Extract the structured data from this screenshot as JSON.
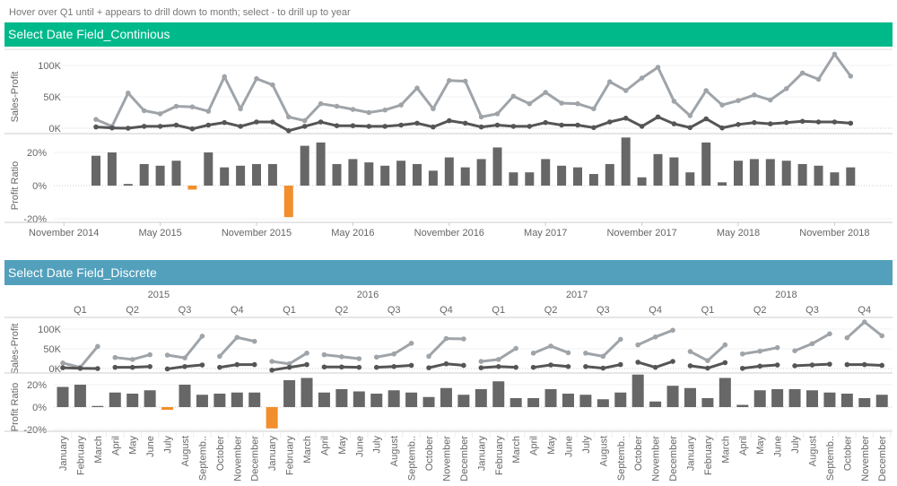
{
  "hint": "Hover over Q1 until + appears to drill down to month; select - to drill up to year",
  "continuous_title": "Select Date Field_Continious",
  "discrete_title": "Select Date Field_Discrete",
  "colors": {
    "continuous_header": "#00b98b",
    "discrete_header": "#52a0bc",
    "sales": "#9fa4a9",
    "profit": "#555555",
    "ratio_positive": "#676767",
    "ratio_negative": "#f28e2b"
  },
  "chart_data": [
    {
      "type": "line",
      "title": "",
      "x_type": "date-continuous",
      "x_ticks": [
        "November 2014",
        "May 2015",
        "November 2015",
        "May 2016",
        "November 2016",
        "May 2017",
        "November 2017",
        "May 2018",
        "November 2018"
      ],
      "panes": [
        {
          "ylabel": "Sales-Profit",
          "y_ticks": [
            "100K",
            "50K",
            "0K"
          ],
          "ylim": [
            0,
            120000
          ]
        },
        {
          "ylabel": "Profit Ratio",
          "type": "bar",
          "y_ticks": [
            "20%",
            "0%",
            "-20%"
          ],
          "ylim": [
            -22,
            30
          ]
        }
      ]
    },
    {
      "type": "line",
      "title": "",
      "x_type": "date-discrete",
      "years": [
        "2015",
        "2016",
        "2017",
        "2018"
      ],
      "quarters": [
        "Q1",
        "Q2",
        "Q3",
        "Q4"
      ],
      "months": [
        "January",
        "February",
        "March",
        "April",
        "May",
        "June",
        "July",
        "August",
        "Septemb..",
        "October",
        "November",
        "December"
      ],
      "panes": [
        {
          "ylabel": "Sales-Profit",
          "y_ticks": [
            "100K",
            "50K",
            "0K"
          ]
        },
        {
          "ylabel": "Profit Ratio",
          "type": "bar",
          "y_ticks": [
            "20%",
            "0%",
            "-20%"
          ]
        }
      ]
    }
  ],
  "series": {
    "months_range": [
      "2015-01",
      "2018-12"
    ],
    "sales_k": [
      14,
      3,
      56,
      28,
      23,
      35,
      34,
      27,
      82,
      31,
      79,
      69,
      18,
      12,
      39,
      35,
      30,
      25,
      29,
      37,
      64,
      31,
      76,
      75,
      18,
      23,
      51,
      39,
      57,
      40,
      39,
      31,
      74,
      60,
      80,
      97,
      43,
      20,
      60,
      37,
      44,
      53,
      45,
      63,
      88,
      78,
      118,
      83
    ],
    "profit_k": [
      2,
      0.5,
      0,
      3,
      3,
      5,
      -1,
      5,
      9,
      3,
      10,
      10,
      -4,
      3,
      10,
      4,
      4,
      3,
      3,
      5,
      8,
      2,
      12,
      8,
      2,
      5,
      3,
      3,
      9,
      5,
      5,
      1,
      10,
      16,
      3,
      18,
      7,
      1,
      15,
      0.5,
      6,
      9,
      7,
      9,
      11,
      10,
      10,
      8
    ],
    "profit_ratio_pct": [
      18,
      20,
      1,
      13,
      12,
      15,
      -2.4,
      20,
      11,
      12,
      13,
      13,
      -19,
      24,
      26,
      13,
      16,
      14,
      12,
      15,
      13,
      9,
      17,
      11,
      16,
      23,
      8,
      8,
      16,
      12,
      11,
      7,
      13,
      29,
      5,
      19,
      17,
      8,
      26,
      2,
      15,
      16,
      16,
      15,
      13,
      12,
      8,
      11
    ]
  }
}
